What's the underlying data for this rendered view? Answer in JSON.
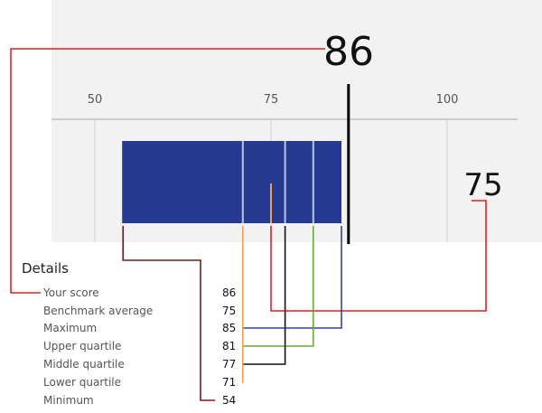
{
  "chart_data": {
    "type": "bar",
    "title": "",
    "xlabel": "",
    "ylabel": "",
    "xlim": [
      40,
      110
    ],
    "ticks": [
      50,
      75,
      100
    ],
    "grid": true,
    "score": 86,
    "benchmark_average": 75,
    "maximum": 85,
    "upper_quartile": 81,
    "middle_quartile": 77,
    "lower_quartile": 71,
    "minimum": 54,
    "score_label": "86",
    "average_label": "75",
    "colors": {
      "bar": "#263a92",
      "divider": "#b9c4f0",
      "score_line": "#000000",
      "background": "#f2f2f2",
      "grid": "#dddddd",
      "axis": "#cccccc"
    }
  },
  "details": {
    "title": "Details",
    "rows": [
      {
        "label": "Your score",
        "value": "86",
        "color": "#e02020",
        "target": 86
      },
      {
        "label": "Benchmark average",
        "value": "75",
        "color": "#e02020",
        "target": 75
      },
      {
        "label": "Maximum",
        "value": "85",
        "color": "#34449a",
        "target": 85
      },
      {
        "label": "Upper quartile",
        "value": "81",
        "color": "#6aaa3a",
        "target": 81
      },
      {
        "label": "Middle quartile",
        "value": "77",
        "color": "#111111",
        "target": 77
      },
      {
        "label": "Lower quartile",
        "value": "71",
        "color": "#f0a050",
        "target": 71
      },
      {
        "label": "Minimum",
        "value": "54",
        "color": "#7a1a1a",
        "target": 54
      }
    ]
  }
}
